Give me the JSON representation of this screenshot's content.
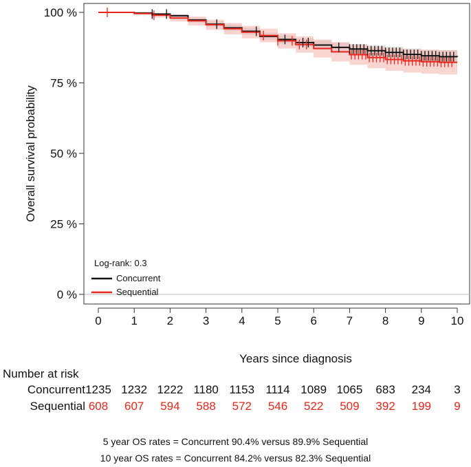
{
  "chart_data": {
    "type": "line",
    "title": "",
    "xlabel": "Years since diagnosis",
    "ylabel": "Overall survival probability",
    "xlim": [
      0,
      10
    ],
    "ylim": [
      0,
      100
    ],
    "xticks": [
      "0",
      "1",
      "2",
      "3",
      "4",
      "5",
      "6",
      "7",
      "8",
      "9",
      "10"
    ],
    "yticks": [
      "0 %",
      "25 %",
      "50 %",
      "75 %",
      "100 %"
    ],
    "annotation": "Log-rank:  0.3",
    "legend": [
      "Concurrent",
      "Sequential"
    ],
    "legend_position": "bottom-left",
    "colors": {
      "Concurrent": "#111111",
      "Sequential": "#e8261d",
      "Concurrent_ci": "#c9c9c9",
      "Sequential_ci": "#f4b3ad"
    },
    "series": [
      {
        "name": "Concurrent",
        "x": [
          0,
          0.5,
          1.0,
          1.5,
          2.0,
          2.5,
          3.0,
          3.5,
          4.0,
          4.5,
          5.0,
          5.5,
          6.0,
          6.5,
          7.0,
          7.5,
          8.0,
          8.5,
          9.0,
          9.5,
          10.0
        ],
        "y": [
          100,
          100,
          99.8,
          99.4,
          98.8,
          97.3,
          95.8,
          94.5,
          93.3,
          91.5,
          90.4,
          89.3,
          88.4,
          87.6,
          87.0,
          86.4,
          85.8,
          85.1,
          84.6,
          84.3,
          84.2
        ],
        "ci_upper": [
          100,
          100,
          100,
          99.8,
          99.4,
          98.1,
          96.8,
          95.6,
          94.5,
          92.8,
          91.8,
          90.8,
          90.0,
          89.3,
          88.8,
          88.3,
          87.8,
          87.2,
          86.8,
          86.6,
          86.5
        ],
        "ci_lower": [
          100,
          99.9,
          99.5,
          98.9,
          98.1,
          96.4,
          94.8,
          93.4,
          92.1,
          90.2,
          89.0,
          87.8,
          86.8,
          85.9,
          85.2,
          84.5,
          83.8,
          83.0,
          82.4,
          82.0,
          81.9
        ],
        "censor_x": [
          1.5,
          1.9,
          3.3,
          4.4,
          5.2,
          5.7,
          5.85,
          6.7,
          7.0,
          7.1,
          7.2,
          7.3,
          7.4,
          7.5,
          7.6,
          7.7,
          7.8,
          7.9,
          8.0,
          8.1,
          8.2,
          8.3,
          8.4,
          8.5,
          8.6,
          8.7,
          8.8,
          8.9,
          9.0,
          9.1,
          9.2,
          9.3,
          9.4,
          9.5,
          9.6,
          9.7,
          9.8,
          9.9
        ]
      },
      {
        "name": "Sequential",
        "x": [
          0,
          0.5,
          1.0,
          1.5,
          2.0,
          2.5,
          3.0,
          3.5,
          4.0,
          4.5,
          5.0,
          5.5,
          6.0,
          6.5,
          7.0,
          7.5,
          8.0,
          8.5,
          9.0,
          9.5,
          10.0
        ],
        "y": [
          100,
          100,
          99.6,
          99.0,
          98.0,
          97.0,
          95.6,
          94.2,
          93.0,
          91.8,
          89.9,
          88.6,
          87.2,
          86.0,
          85.0,
          84.0,
          83.3,
          82.8,
          82.5,
          82.3,
          82.3
        ],
        "ci_upper": [
          100,
          100,
          100,
          99.8,
          99.2,
          98.5,
          97.4,
          96.2,
          95.2,
          94.2,
          92.6,
          91.5,
          90.4,
          89.4,
          88.6,
          87.8,
          87.3,
          86.9,
          86.7,
          86.6,
          86.6
        ],
        "ci_lower": [
          100,
          99.8,
          99.1,
          98.1,
          96.8,
          95.4,
          93.8,
          92.2,
          90.8,
          89.4,
          87.2,
          85.7,
          84.0,
          82.6,
          81.4,
          80.2,
          79.3,
          78.7,
          78.3,
          78.0,
          78.0
        ],
        "censor_x": [
          0.25,
          1.55,
          4.6,
          5.0,
          5.4,
          5.6,
          5.8,
          7.05,
          7.15,
          7.25,
          7.35,
          7.45,
          7.55,
          7.65,
          7.75,
          7.85,
          7.95,
          8.05,
          8.15,
          8.25,
          8.35,
          8.45,
          8.55,
          8.65,
          8.75,
          8.85,
          8.95,
          9.05,
          9.15,
          9.25,
          9.35,
          9.45,
          9.55,
          9.65,
          9.75,
          9.85
        ]
      }
    ]
  },
  "risk_table": {
    "title": "Number at risk",
    "times": [
      0,
      1,
      2,
      3,
      4,
      5,
      6,
      7,
      8,
      9,
      10
    ],
    "rows": [
      {
        "label": "Concurrent",
        "values": [
          "1235",
          "1232",
          "1222",
          "1180",
          "1153",
          "1114",
          "1089",
          "1065",
          "683",
          "234",
          "3"
        ]
      },
      {
        "label": "Sequential",
        "values": [
          "608",
          "607",
          "594",
          "588",
          "572",
          "546",
          "522",
          "509",
          "392",
          "199",
          "9"
        ]
      }
    ]
  },
  "notes": {
    "line1": "5 year OS rates =  Concurrent 90.4% versus 89.9% Sequential",
    "line2": "10 year OS rates = Concurrent 84.2% versus 82.3% Sequential"
  }
}
